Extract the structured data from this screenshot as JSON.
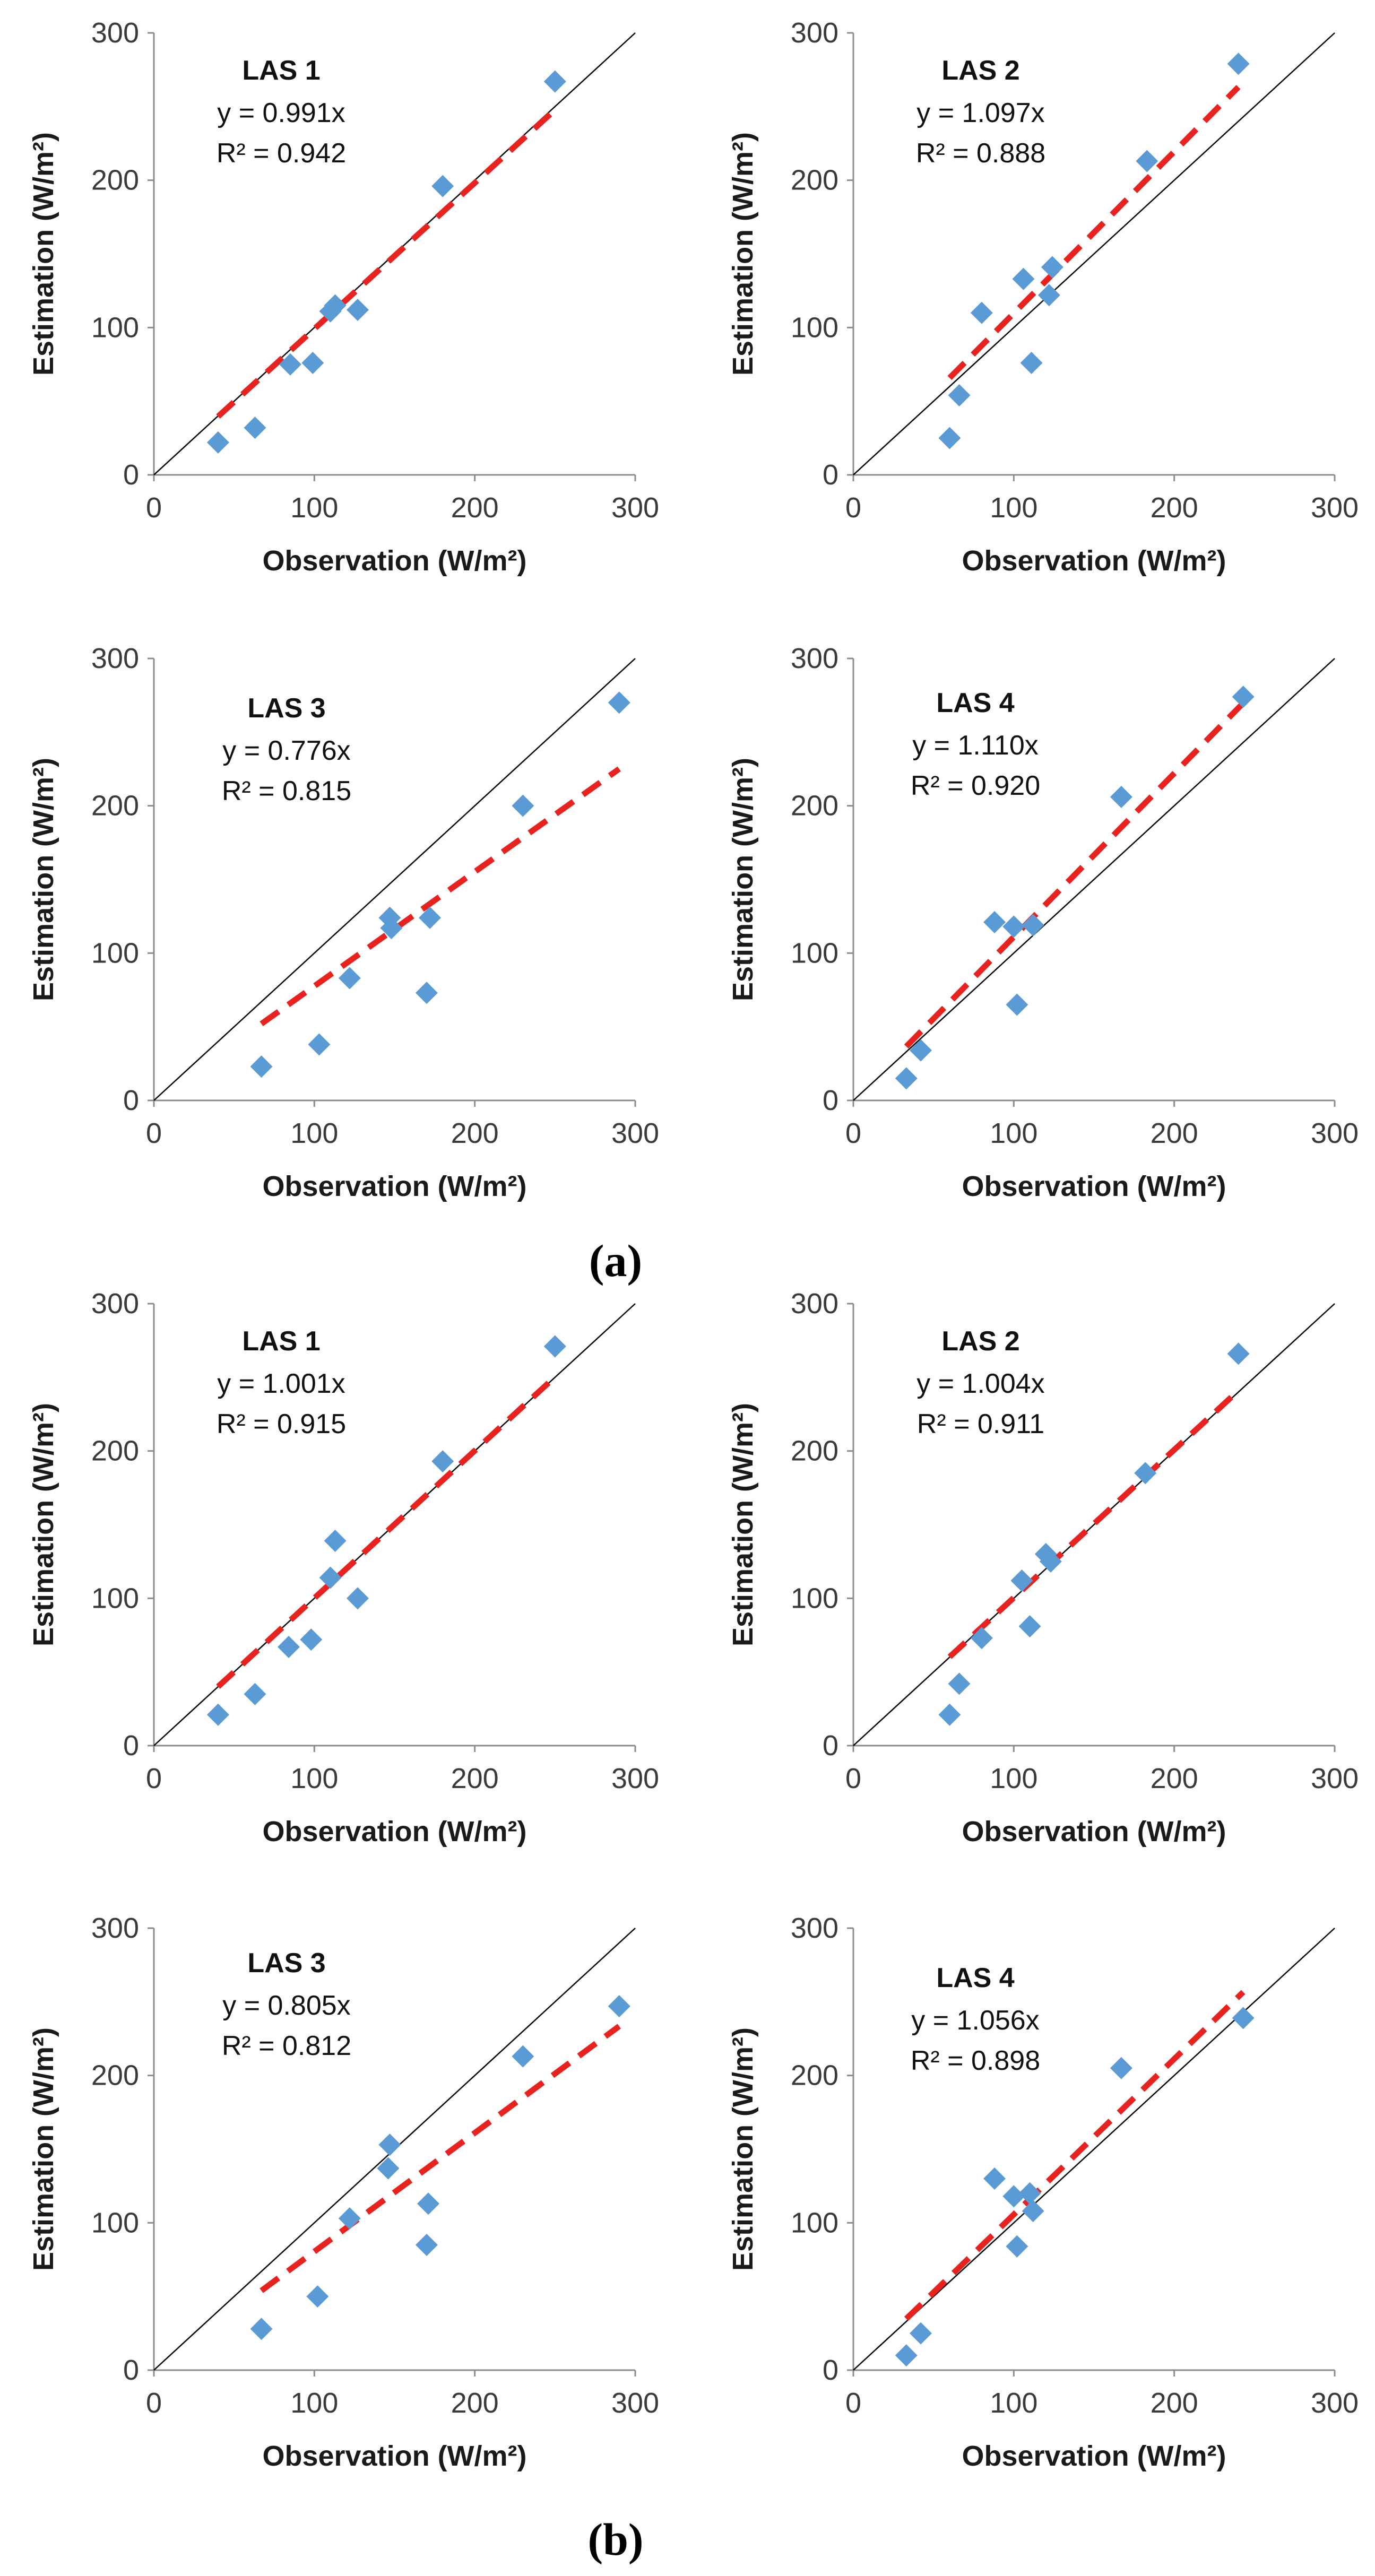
{
  "figure": {
    "panel_labels": [
      "(a)",
      "(b)"
    ]
  },
  "style": {
    "marker_color": "#5B9BD5",
    "fit_color": "#E8231F",
    "identity_color": "#000000",
    "axis_color": "#8c8c8c"
  },
  "chart_data": [
    {
      "type": "scatter",
      "group": "(a)",
      "title": "LAS 1",
      "equation": "y = 0.991x",
      "r2": "R² = 0.942",
      "slope": 0.991,
      "xlabel": "Observation (W/m²)",
      "ylabel": "Estimation (W/m²)",
      "xlim": [
        0,
        300
      ],
      "ylim": [
        0,
        300
      ],
      "xticks": [
        0,
        100,
        200,
        300
      ],
      "yticks": [
        0,
        100,
        200,
        300
      ],
      "fit_range": [
        40,
        250
      ],
      "points": [
        [
          40,
          22
        ],
        [
          63,
          32
        ],
        [
          85,
          75
        ],
        [
          99,
          76
        ],
        [
          110,
          111
        ],
        [
          113,
          115
        ],
        [
          127,
          112
        ],
        [
          180,
          196
        ],
        [
          250,
          267
        ]
      ]
    },
    {
      "type": "scatter",
      "group": "(a)",
      "title": "LAS 2",
      "equation": "y = 1.097x",
      "r2": "R² = 0.888",
      "slope": 1.097,
      "xlabel": "Observation (W/m²)",
      "ylabel": "Estimation (W/m²)",
      "xlim": [
        0,
        300
      ],
      "ylim": [
        0,
        300
      ],
      "xticks": [
        0,
        100,
        200,
        300
      ],
      "yticks": [
        0,
        100,
        200,
        300
      ],
      "fit_range": [
        60,
        240
      ],
      "points": [
        [
          60,
          25
        ],
        [
          66,
          54
        ],
        [
          80,
          110
        ],
        [
          106,
          133
        ],
        [
          111,
          76
        ],
        [
          122,
          122
        ],
        [
          124,
          141
        ],
        [
          183,
          213
        ],
        [
          240,
          279
        ]
      ]
    },
    {
      "type": "scatter",
      "group": "(a)",
      "title": "LAS 3",
      "equation": "y = 0.776x",
      "r2": "R² = 0.815",
      "slope": 0.776,
      "xlabel": "Observation (W/m²)",
      "ylabel": "Estimation (W/m²)",
      "xlim": [
        0,
        300
      ],
      "ylim": [
        0,
        300
      ],
      "xticks": [
        0,
        100,
        200,
        300
      ],
      "yticks": [
        0,
        100,
        200,
        300
      ],
      "fit_range": [
        67,
        290
      ],
      "points": [
        [
          67,
          23
        ],
        [
          103,
          38
        ],
        [
          122,
          83
        ],
        [
          147,
          124
        ],
        [
          148,
          117
        ],
        [
          170,
          73
        ],
        [
          172,
          124
        ],
        [
          230,
          200
        ],
        [
          290,
          270
        ]
      ]
    },
    {
      "type": "scatter",
      "group": "(a)",
      "title": "LAS 4",
      "equation": "y = 1.110x",
      "r2": "R² = 0.920",
      "slope": 1.11,
      "xlabel": "Observation (W/m²)",
      "ylabel": "Estimation (W/m²)",
      "xlim": [
        0,
        300
      ],
      "ylim": [
        0,
        300
      ],
      "xticks": [
        0,
        100,
        200,
        300
      ],
      "yticks": [
        0,
        100,
        200,
        300
      ],
      "fit_range": [
        33,
        243
      ],
      "points": [
        [
          33,
          15
        ],
        [
          42,
          34
        ],
        [
          88,
          121
        ],
        [
          100,
          118
        ],
        [
          102,
          65
        ],
        [
          112,
          119
        ],
        [
          167,
          206
        ],
        [
          243,
          274
        ]
      ]
    },
    {
      "type": "scatter",
      "group": "(b)",
      "title": "LAS 1",
      "equation": "y = 1.001x",
      "r2": "R² = 0.915",
      "slope": 1.001,
      "xlabel": "Observation (W/m²)",
      "ylabel": "Estimation (W/m²)",
      "xlim": [
        0,
        300
      ],
      "ylim": [
        0,
        300
      ],
      "xticks": [
        0,
        100,
        200,
        300
      ],
      "yticks": [
        0,
        100,
        200,
        300
      ],
      "fit_range": [
        40,
        250
      ],
      "points": [
        [
          40,
          21
        ],
        [
          63,
          35
        ],
        [
          84,
          67
        ],
        [
          98,
          72
        ],
        [
          110,
          114
        ],
        [
          113,
          139
        ],
        [
          127,
          100
        ],
        [
          180,
          193
        ],
        [
          250,
          271
        ]
      ]
    },
    {
      "type": "scatter",
      "group": "(b)",
      "title": "LAS 2",
      "equation": "y = 1.004x",
      "r2": "R² = 0.911",
      "slope": 1.004,
      "xlabel": "Observation (W/m²)",
      "ylabel": "Estimation (W/m²)",
      "xlim": [
        0,
        300
      ],
      "ylim": [
        0,
        300
      ],
      "xticks": [
        0,
        100,
        200,
        300
      ],
      "yticks": [
        0,
        100,
        200,
        300
      ],
      "fit_range": [
        60,
        240
      ],
      "points": [
        [
          60,
          21
        ],
        [
          66,
          42
        ],
        [
          80,
          73
        ],
        [
          105,
          112
        ],
        [
          110,
          81
        ],
        [
          120,
          130
        ],
        [
          123,
          125
        ],
        [
          182,
          185
        ],
        [
          240,
          266
        ]
      ]
    },
    {
      "type": "scatter",
      "group": "(b)",
      "title": "LAS 3",
      "equation": "y = 0.805x",
      "r2": "R² = 0.812",
      "slope": 0.805,
      "xlabel": "Observation (W/m²)",
      "ylabel": "Estimation (W/m²)",
      "xlim": [
        0,
        300
      ],
      "ylim": [
        0,
        300
      ],
      "xticks": [
        0,
        100,
        200,
        300
      ],
      "yticks": [
        0,
        100,
        200,
        300
      ],
      "fit_range": [
        67,
        290
      ],
      "points": [
        [
          67,
          28
        ],
        [
          102,
          50
        ],
        [
          122,
          103
        ],
        [
          146,
          137
        ],
        [
          147,
          153
        ],
        [
          170,
          85
        ],
        [
          171,
          113
        ],
        [
          230,
          213
        ],
        [
          290,
          247
        ]
      ]
    },
    {
      "type": "scatter",
      "group": "(b)",
      "title": "LAS 4",
      "equation": "y = 1.056x",
      "r2": "R² = 0.898",
      "slope": 1.056,
      "xlabel": "Observation (W/m²)",
      "ylabel": "Estimation (W/m²)",
      "xlim": [
        0,
        300
      ],
      "ylim": [
        0,
        300
      ],
      "xticks": [
        0,
        100,
        200,
        300
      ],
      "yticks": [
        0,
        100,
        200,
        300
      ],
      "fit_range": [
        33,
        243
      ],
      "points": [
        [
          33,
          10
        ],
        [
          42,
          25
        ],
        [
          88,
          130
        ],
        [
          100,
          118
        ],
        [
          102,
          84
        ],
        [
          110,
          120
        ],
        [
          112,
          108
        ],
        [
          167,
          205
        ],
        [
          243,
          239
        ]
      ]
    }
  ]
}
